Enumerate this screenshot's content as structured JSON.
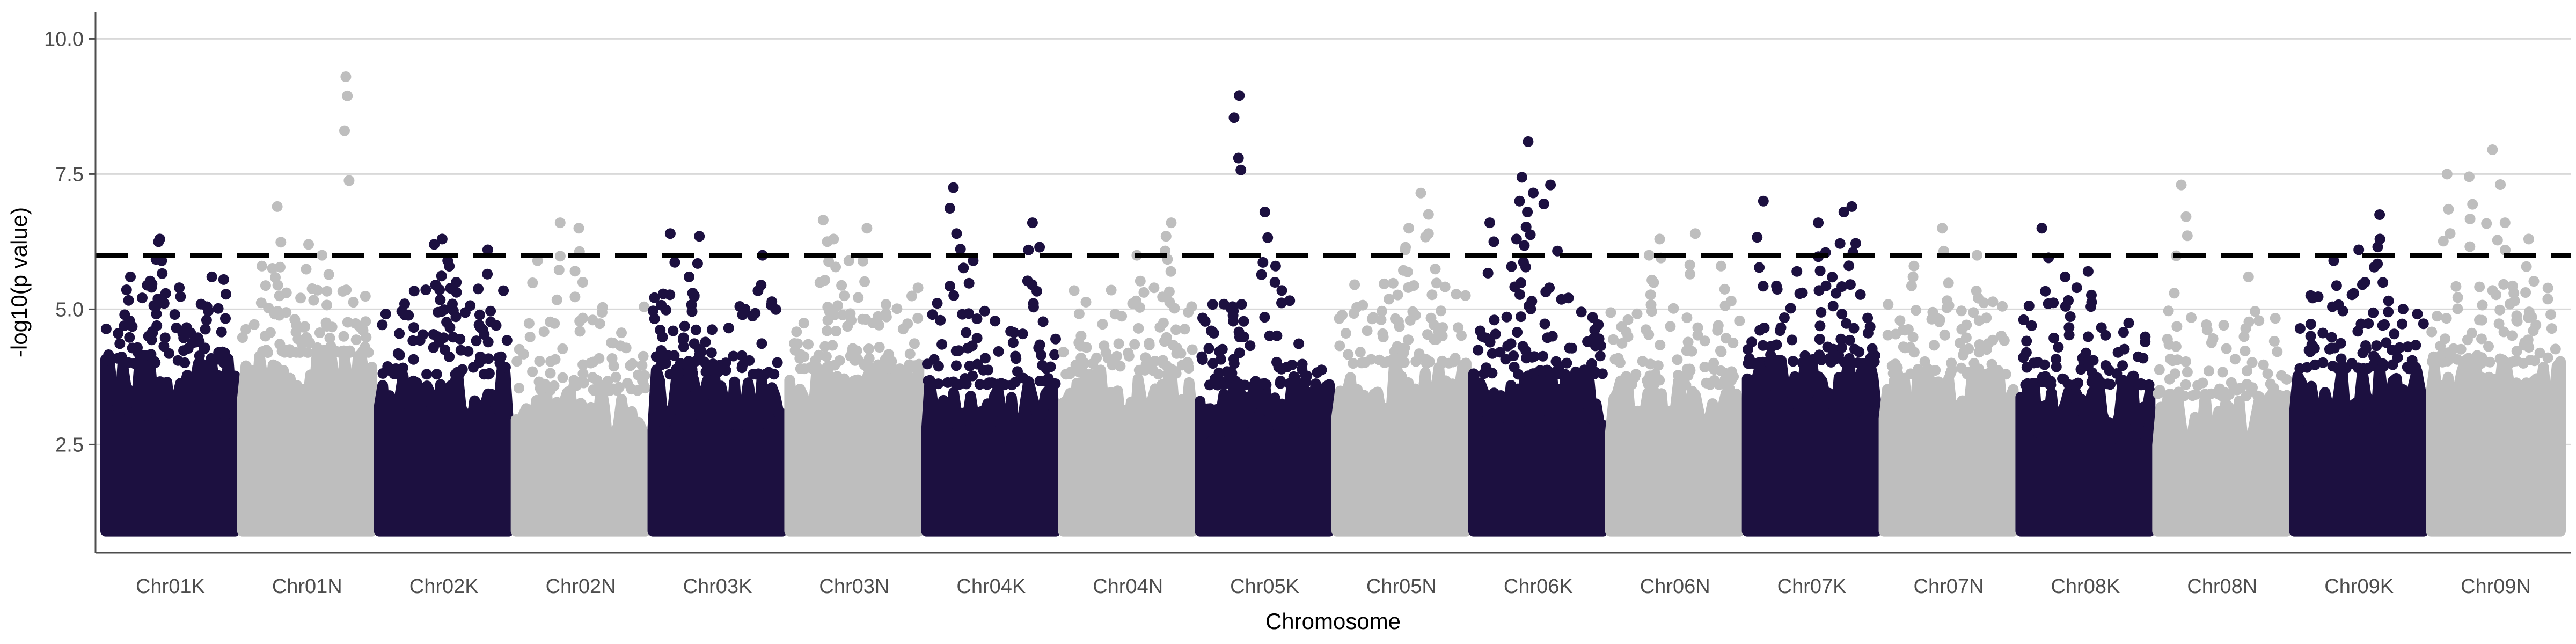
{
  "chart_data": {
    "type": "scatter",
    "title": "",
    "xlabel": "Chromosome",
    "ylabel": "-log10(p value)",
    "xlim_categories": [
      "Chr01K",
      "Chr01N",
      "Chr02K",
      "Chr02N",
      "Chr03K",
      "Chr03N",
      "Chr04K",
      "Chr04N",
      "Chr05K",
      "Chr05N",
      "Chr06K",
      "Chr06N",
      "Chr07K",
      "Chr07N",
      "Chr08K",
      "Chr08N",
      "Chr09K",
      "Chr09N"
    ],
    "ylim": [
      0.5,
      10.5
    ],
    "yticks": [
      2.5,
      5.0,
      7.5,
      10.0
    ],
    "ytick_labels": [
      "2.5",
      "5.0",
      "7.5",
      "10.0"
    ],
    "grid": "horizontal major gridlines",
    "threshold": {
      "value": 6.0,
      "style": "dashed"
    },
    "colors": {
      "K": "#1c1040",
      "N": "#bebebe",
      "threshold": "#000000",
      "grid": "#d9d9d9",
      "axis": "#4d4d4d"
    },
    "chromosomes": [
      {
        "label": "Chr01K",
        "bulk_max": 5.0,
        "peaks": [
          6.25,
          6.3,
          5.9,
          5.6,
          5.4
        ]
      },
      {
        "label": "Chr01N",
        "bulk_max": 5.2,
        "peaks": [
          9.3,
          6.9,
          6.2,
          6.0,
          5.8
        ]
      },
      {
        "label": "Chr02K",
        "bulk_max": 4.8,
        "peaks": [
          6.1,
          6.3,
          6.2,
          5.9,
          5.5
        ]
      },
      {
        "label": "Chr02N",
        "bulk_max": 4.5,
        "peaks": [
          6.6,
          6.5,
          5.9,
          5.5
        ]
      },
      {
        "label": "Chr03K",
        "bulk_max": 4.8,
        "peaks": [
          6.4,
          6.35,
          6.0,
          5.6,
          5.3
        ]
      },
      {
        "label": "Chr03N",
        "bulk_max": 4.9,
        "peaks": [
          6.65,
          6.5,
          6.3,
          5.9
        ]
      },
      {
        "label": "Chr04K",
        "bulk_max": 4.6,
        "peaks": [
          7.25,
          6.6,
          6.4,
          6.15,
          5.9
        ]
      },
      {
        "label": "Chr04N",
        "bulk_max": 4.8,
        "peaks": [
          6.6,
          6.35,
          6.0,
          5.7
        ]
      },
      {
        "label": "Chr05K",
        "bulk_max": 4.6,
        "peaks": [
          8.95,
          6.8,
          5.8,
          5.5
        ]
      },
      {
        "label": "Chr05N",
        "bulk_max": 5.0,
        "peaks": [
          7.15,
          6.5,
          6.4,
          6.1
        ]
      },
      {
        "label": "Chr06K",
        "bulk_max": 4.8,
        "peaks": [
          8.1,
          7.3,
          7.0,
          6.8,
          6.6,
          6.3
        ]
      },
      {
        "label": "Chr06N",
        "bulk_max": 4.6,
        "peaks": [
          6.4,
          6.3,
          6.0,
          5.8
        ]
      },
      {
        "label": "Chr07K",
        "bulk_max": 5.0,
        "peaks": [
          7.0,
          6.9,
          6.8,
          6.6,
          6.05,
          5.7
        ]
      },
      {
        "label": "Chr07N",
        "bulk_max": 4.8,
        "peaks": [
          6.5,
          6.0,
          5.8,
          5.6
        ]
      },
      {
        "label": "Chr08K",
        "bulk_max": 4.6,
        "peaks": [
          6.5,
          5.7,
          5.6,
          5.4
        ]
      },
      {
        "label": "Chr08N",
        "bulk_max": 4.4,
        "peaks": [
          7.3,
          5.6,
          5.3
        ]
      },
      {
        "label": "Chr09K",
        "bulk_max": 4.9,
        "peaks": [
          6.75,
          6.3,
          6.1,
          5.9
        ]
      },
      {
        "label": "Chr09N",
        "bulk_max": 5.0,
        "peaks": [
          7.95,
          7.5,
          7.45,
          6.6,
          6.3
        ]
      }
    ]
  }
}
